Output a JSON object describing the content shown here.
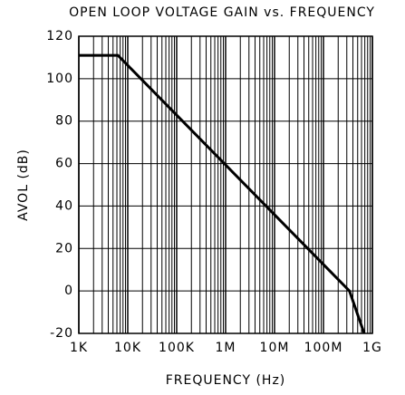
{
  "chart_data": {
    "type": "line",
    "title": "OPEN LOOP VOLTAGE GAIN vs. FREQUENCY",
    "x_label": "FREQUENCY (Hz)",
    "y_label": "AVOL (dB)",
    "x_scale": "log",
    "grid": true,
    "series": [
      {
        "name": "AVOL",
        "color": "#000000",
        "x": [
          1000,
          6300,
          340000000,
          680000000
        ],
        "values": [
          111,
          111,
          0,
          -20
        ]
      }
    ],
    "xlim": [
      1000,
      1000000000
    ],
    "xticks": [
      {
        "value": 1000,
        "label": "1K"
      },
      {
        "value": 10000,
        "label": "10K"
      },
      {
        "value": 100000,
        "label": "100K"
      },
      {
        "value": 1000000,
        "label": "1M"
      },
      {
        "value": 10000000,
        "label": "10M"
      },
      {
        "value": 100000000,
        "label": "100M"
      },
      {
        "value": 1000000000,
        "label": "1G"
      }
    ],
    "ylim": [
      -20,
      120
    ],
    "yticks": [
      -20,
      0,
      20,
      40,
      60,
      80,
      100,
      120
    ]
  }
}
